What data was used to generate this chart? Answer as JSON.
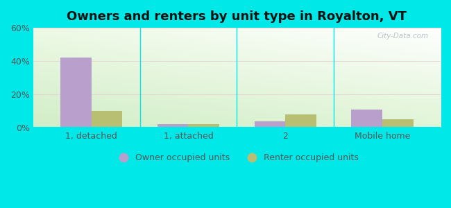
{
  "title": "Owners and renters by unit type in Royalton, VT",
  "categories": [
    "1, detached",
    "1, attached",
    "2",
    "Mobile home"
  ],
  "owner_values": [
    42,
    2,
    4,
    11
  ],
  "renter_values": [
    10,
    2,
    8,
    5
  ],
  "owner_color": "#b89fcc",
  "renter_color": "#b8bf72",
  "ylim": [
    0,
    60
  ],
  "yticks": [
    0,
    20,
    40,
    60
  ],
  "ytick_labels": [
    "0%",
    "20%",
    "40%",
    "60%"
  ],
  "bar_width": 0.32,
  "outer_color": "#00e8e8",
  "legend_owner": "Owner occupied units",
  "legend_renter": "Renter occupied units",
  "watermark": "City-Data.com",
  "title_fontsize": 13,
  "tick_fontsize": 9,
  "legend_fontsize": 9,
  "bg_top_color": "#f2faf0",
  "bg_bottom_left_color": "#c8e8c0",
  "bg_top_right_color": "#ffffff"
}
